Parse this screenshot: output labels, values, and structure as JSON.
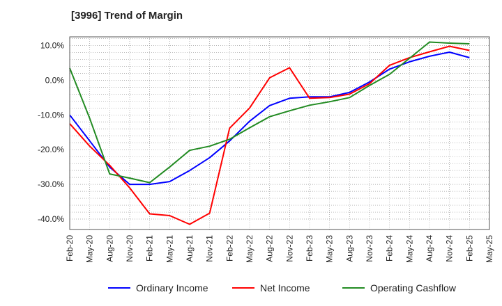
{
  "title": "[3996]  Trend of Margin",
  "chart_data": {
    "type": "line",
    "title": "[3996]  Trend of Margin",
    "xlabel": "",
    "ylabel": "",
    "ylim": [
      -43,
      12.5
    ],
    "y_ticks": [
      10,
      0,
      -10,
      -20,
      -30,
      -40
    ],
    "y_tick_labels": [
      "10.0%",
      "0.0%",
      "-10.0%",
      "-20.0%",
      "-30.0%",
      "-40.0%"
    ],
    "grid": true,
    "legend_position": "bottom",
    "x": [
      "Feb-20",
      "May-20",
      "Aug-20",
      "Nov-20",
      "Feb-21",
      "May-21",
      "Aug-21",
      "Nov-21",
      "Feb-22",
      "May-22",
      "Aug-22",
      "Nov-22",
      "Feb-23",
      "May-23",
      "Aug-23",
      "Nov-23",
      "Feb-24",
      "May-24",
      "Aug-24",
      "Nov-24",
      "Feb-25",
      "May-25"
    ],
    "series": [
      {
        "name": "Ordinary Income",
        "color": "#0000ff",
        "values": [
          -10.0,
          -17.5,
          -25.0,
          -30.0,
          -30.0,
          -29.2,
          -26.0,
          -22.3,
          -17.5,
          -11.8,
          -7.3,
          -5.2,
          -4.8,
          -4.8,
          -3.5,
          -0.5,
          3.2,
          5.3,
          6.9,
          8.1,
          6.5,
          null
        ]
      },
      {
        "name": "Net Income",
        "color": "#ff0000",
        "values": [
          -12.5,
          -19.0,
          -24.5,
          -31.0,
          -38.5,
          -39.0,
          -41.5,
          -38.3,
          -13.8,
          -8.0,
          0.7,
          3.6,
          -5.2,
          -5.0,
          -4.0,
          -1.0,
          4.3,
          6.5,
          8.2,
          9.8,
          8.6,
          null
        ]
      },
      {
        "name": "Operating Cashflow",
        "color": "#228b22",
        "values": [
          3.5,
          -11.0,
          -27.0,
          -28.2,
          -29.5,
          -25.0,
          -20.2,
          -19.0,
          -17.0,
          -13.7,
          -10.5,
          -8.8,
          -7.2,
          -6.2,
          -5.0,
          -1.5,
          1.7,
          6.3,
          11.0,
          10.7,
          10.5,
          null
        ]
      }
    ]
  }
}
